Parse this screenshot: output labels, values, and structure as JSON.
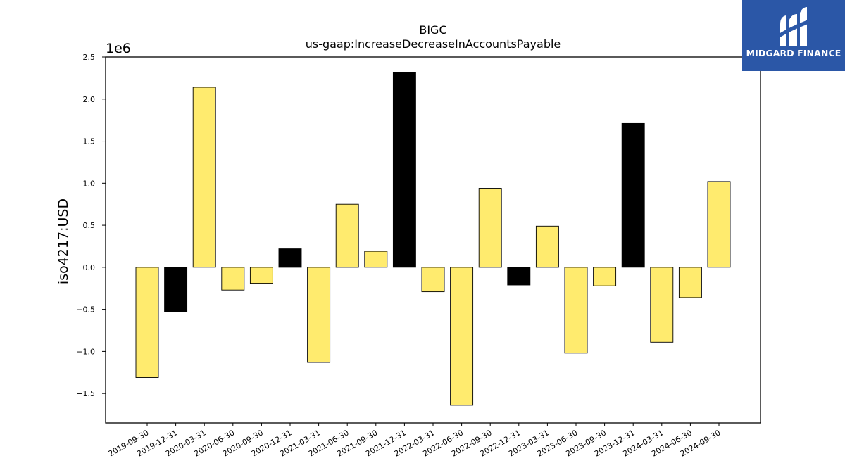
{
  "chart_data": {
    "type": "bar",
    "title": "BIGC",
    "subtitle": "us-gaap:IncreaseDecreaseInAccountsPayable",
    "ylabel": "iso4217:USD",
    "xlabel": "",
    "y_scale_label": "1e6",
    "y_scale": 1000000,
    "ylim": [
      -1.85,
      2.5
    ],
    "yticks": [
      -1.5,
      -1.0,
      -0.5,
      0.0,
      0.5,
      1.0,
      1.5,
      2.0,
      2.5
    ],
    "ytick_labels": [
      "−1.5",
      "−1.0",
      "−0.5",
      "0.0",
      "0.5",
      "1.0",
      "1.5",
      "2.0",
      "2.5"
    ],
    "grid": false,
    "categories": [
      "2019-09-30",
      "2019-12-31",
      "2020-03-31",
      "2020-06-30",
      "2020-09-30",
      "2020-12-31",
      "2021-03-31",
      "2021-06-30",
      "2021-09-30",
      "2021-12-31",
      "2022-03-31",
      "2022-06-30",
      "2022-09-30",
      "2022-12-31",
      "2023-03-31",
      "2023-06-30",
      "2023-09-30",
      "2023-12-31",
      "2024-03-31",
      "2024-06-30",
      "2024-09-30"
    ],
    "values": [
      -1310000,
      -530000,
      2140000,
      -270000,
      -190000,
      220000,
      -1130000,
      750000,
      190000,
      2320000,
      -290000,
      -1640000,
      940000,
      -210000,
      490000,
      -1020000,
      -220000,
      1710000,
      -890000,
      -360000,
      1020000
    ],
    "bar_colors": [
      "#ffeb6e",
      "#000000",
      "#ffeb6e",
      "#ffeb6e",
      "#ffeb6e",
      "#000000",
      "#ffeb6e",
      "#ffeb6e",
      "#ffeb6e",
      "#000000",
      "#ffeb6e",
      "#ffeb6e",
      "#ffeb6e",
      "#000000",
      "#ffeb6e",
      "#ffeb6e",
      "#ffeb6e",
      "#000000",
      "#ffeb6e",
      "#ffeb6e",
      "#ffeb6e"
    ]
  },
  "logo": {
    "text": "MIDGARD FINANCE",
    "background": "#2b57a7",
    "icon": "midgard-logo-icon"
  }
}
